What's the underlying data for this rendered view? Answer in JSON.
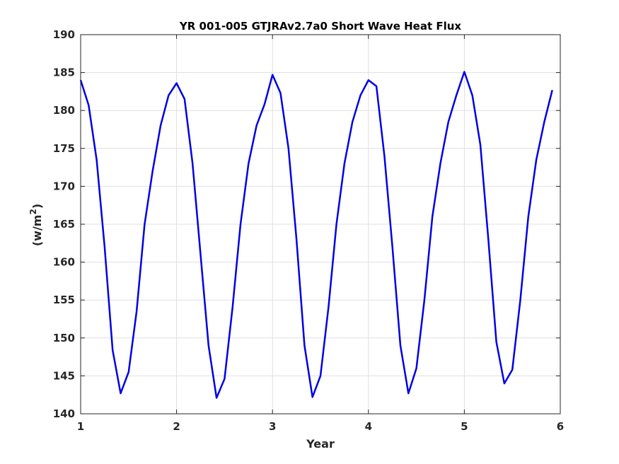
{
  "chart_data": {
    "type": "line",
    "title": "YR 001-005 GTJRAv2.7a0 Short Wave Heat Flux",
    "xlabel": "Year",
    "ylabel_main": "(w/m",
    "ylabel_sup": "2",
    "ylabel_close": ")",
    "xlim": [
      1,
      6
    ],
    "ylim": [
      140,
      190
    ],
    "xticks": [
      "1",
      "2",
      "3",
      "4",
      "5",
      "6"
    ],
    "yticks": [
      "140",
      "145",
      "150",
      "155",
      "160",
      "165",
      "170",
      "175",
      "180",
      "185",
      "190"
    ],
    "grid": true,
    "line_color": "#0000e6",
    "series": [
      {
        "x": [
          1.0,
          1.083,
          1.167,
          1.25,
          1.333,
          1.417,
          1.5,
          1.583,
          1.667,
          1.75,
          1.833,
          1.917,
          2.0,
          2.083,
          2.167,
          2.25,
          2.333,
          2.417,
          2.5,
          2.583,
          2.667,
          2.75,
          2.833,
          2.917,
          3.0,
          3.083,
          3.167,
          3.25,
          3.333,
          3.417,
          3.5,
          3.583,
          3.667,
          3.75,
          3.833,
          3.917,
          4.0,
          4.083,
          4.167,
          4.25,
          4.333,
          4.417,
          4.5,
          4.583,
          4.667,
          4.75,
          4.833,
          4.917,
          5.0,
          5.083,
          5.167,
          5.25,
          5.333,
          5.417,
          5.5,
          5.583,
          5.667,
          5.75,
          5.833,
          5.917
        ],
        "values": [
          184.0,
          180.7,
          173.5,
          162.0,
          148.4,
          142.7,
          145.5,
          153.5,
          165.0,
          172.0,
          178.0,
          182.0,
          183.6,
          181.5,
          173.0,
          161.0,
          149.0,
          142.1,
          144.6,
          154.0,
          165.0,
          173.0,
          178.0,
          180.8,
          184.7,
          182.3,
          175.0,
          163.0,
          149.0,
          142.2,
          145.0,
          154.0,
          165.0,
          173.0,
          178.5,
          182.0,
          184.0,
          183.2,
          174.0,
          162.0,
          149.0,
          142.7,
          146.0,
          155.0,
          166.0,
          173.0,
          178.5,
          182.0,
          185.1,
          182.0,
          175.5,
          163.0,
          149.5,
          144.0,
          145.8,
          155.0,
          166.0,
          173.5,
          178.5,
          182.7
        ]
      }
    ]
  }
}
